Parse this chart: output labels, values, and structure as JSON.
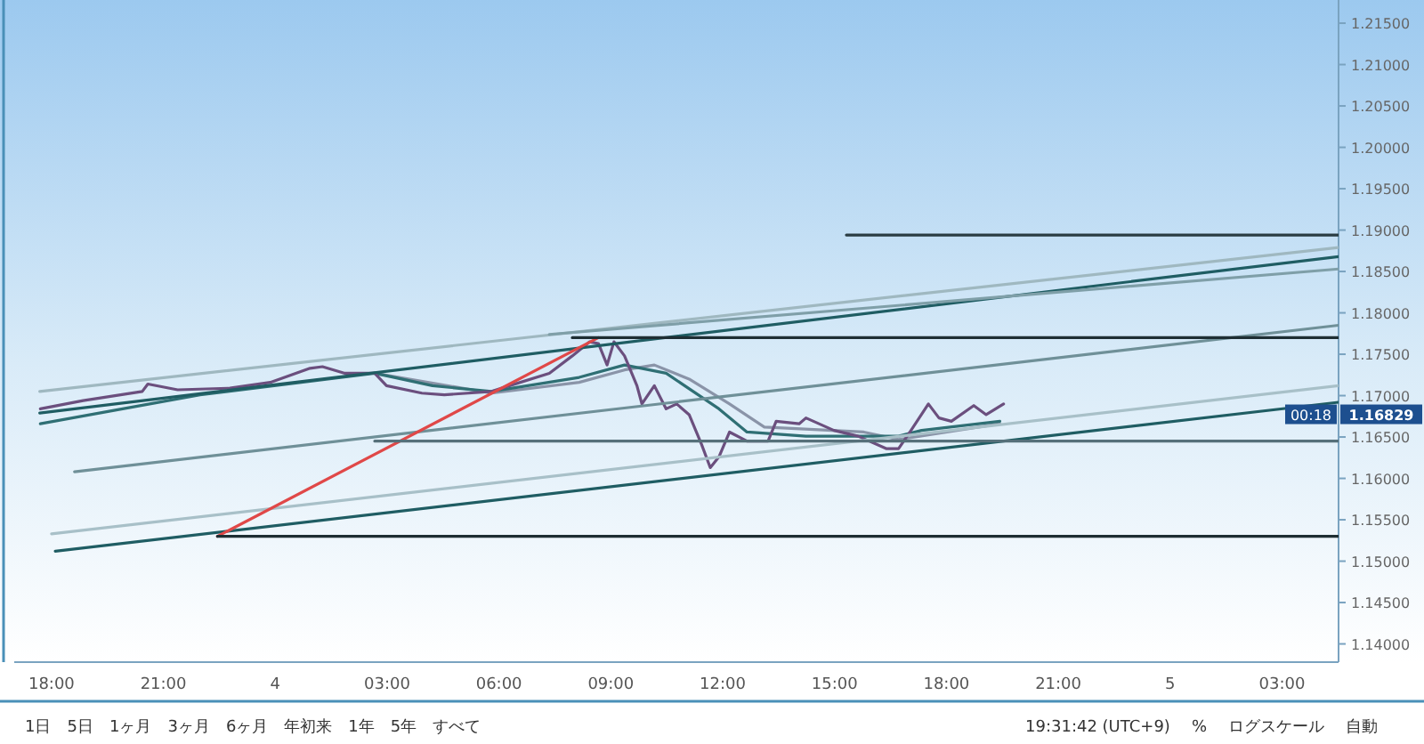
{
  "chart_data": {
    "type": "line",
    "grid": false,
    "marker": "none",
    "line_style": "solid",
    "xlim": [
      "--11-03T17:00",
      "--11-05T04:31"
    ],
    "ylim": [
      1.1378,
      1.2178
    ],
    "xticks": [
      {
        "value": "--11-03T18:00",
        "label": "18:00"
      },
      {
        "value": "--11-03T21:00",
        "label": "21:00"
      },
      {
        "value": "--11-04T00:00",
        "label": "4"
      },
      {
        "value": "--11-04T03:00",
        "label": "03:00"
      },
      {
        "value": "--11-04T06:00",
        "label": "06:00"
      },
      {
        "value": "--11-04T09:00",
        "label": "09:00"
      },
      {
        "value": "--11-04T12:00",
        "label": "12:00"
      },
      {
        "value": "--11-04T15:00",
        "label": "15:00"
      },
      {
        "value": "--11-04T18:00",
        "label": "18:00"
      },
      {
        "value": "--11-04T21:00",
        "label": "21:00"
      },
      {
        "value": "--11-05T00:00",
        "label": "5"
      },
      {
        "value": "--11-05T03:00",
        "label": "03:00"
      }
    ],
    "yticks": [
      {
        "value": 1.14,
        "label": "1.14000"
      },
      {
        "value": 1.145,
        "label": "1.14500"
      },
      {
        "value": 1.15,
        "label": "1.15000"
      },
      {
        "value": 1.155,
        "label": "1.15500"
      },
      {
        "value": 1.16,
        "label": "1.16000"
      },
      {
        "value": 1.165,
        "label": "1.16500"
      },
      {
        "value": 1.17,
        "label": "1.17000"
      },
      {
        "value": 1.175,
        "label": "1.17500"
      },
      {
        "value": 1.18,
        "label": "1.18000"
      },
      {
        "value": 1.185,
        "label": "1.18500"
      },
      {
        "value": 1.19,
        "label": "1.19000"
      },
      {
        "value": 1.195,
        "label": "1.19500"
      },
      {
        "value": 1.2,
        "label": "1.20000"
      },
      {
        "value": 1.205,
        "label": "1.20500"
      },
      {
        "value": 1.21,
        "label": "1.21000"
      },
      {
        "value": 1.215,
        "label": "1.21500"
      }
    ],
    "series": [
      {
        "color": "#8a94a8",
        "x": [
          "--11-04T02:40",
          "--11-04T05:48",
          "--11-04T08:09",
          "--11-04T09:22",
          "--11-04T10:10",
          "--11-04T11:06",
          "--11-04T12:11",
          "--11-04T13:07",
          "--11-04T15:47",
          "--11-04T16:43",
          "--11-04T19:26"
        ],
        "values": [
          1.1727,
          1.1703,
          1.1716,
          1.1731,
          1.1737,
          1.172,
          1.169,
          1.1662,
          1.1656,
          1.1647,
          1.1666
        ]
      },
      {
        "color": "#2f6f74",
        "x": [
          "--11-03T17:42",
          "--11-03T21:59",
          "--11-04T02:40",
          "--11-04T04:13",
          "--11-04T05:48",
          "--11-04T08:09",
          "--11-04T09:22",
          "--11-04T10:29",
          "--11-04T11:54",
          "--11-04T12:39",
          "--11-04T14:14",
          "--11-04T16:43",
          "--11-04T17:20",
          "--11-04T19:26"
        ],
        "values": [
          1.1666,
          1.1701,
          1.1727,
          1.1712,
          1.1705,
          1.1722,
          1.1737,
          1.1727,
          1.1684,
          1.1656,
          1.1651,
          1.1651,
          1.1658,
          1.1669
        ]
      },
      {
        "color": "#6b4f7e",
        "x": [
          "--11-03T17:42",
          "--11-03T18:51",
          "--11-03T20:26",
          "--11-03T20:35",
          "--11-03T21:23",
          "--11-03T22:47",
          "--11-03T23:52",
          "--11-04T00:56",
          "--11-04T01:16",
          "--11-04T01:52",
          "--11-04T02:40",
          "--11-04T02:59",
          "--11-04T03:56",
          "--11-04T04:32",
          "--11-04T05:48",
          "--11-04T06:17",
          "--11-04T07:21",
          "--11-04T07:58",
          "--11-04T08:26",
          "--11-04T08:40",
          "--11-04T08:54",
          "--11-04T09:05",
          "--11-04T09:22",
          "--11-04T09:42",
          "--11-04T09:50",
          "--11-04T10:10",
          "--11-04T10:29",
          "--11-04T10:46",
          "--11-04T11:06",
          "--11-04T11:26",
          "--11-04T11:40",
          "--11-04T11:54",
          "--11-04T12:11",
          "--11-04T12:39",
          "--11-04T13:13",
          "--11-04T13:26",
          "--11-04T14:03",
          "--11-04T14:14",
          "--11-04T14:59",
          "--11-04T15:38",
          "--11-04T16:23",
          "--11-04T16:43",
          "--11-04T17:03",
          "--11-04T17:31",
          "--11-04T17:48",
          "--11-04T18:08",
          "--11-04T18:44",
          "--11-04T19:04",
          "--11-04T19:32"
        ],
        "values": [
          1.1684,
          1.1694,
          1.1705,
          1.1714,
          1.1707,
          1.1709,
          1.1716,
          1.1733,
          1.1735,
          1.1727,
          1.1727,
          1.1712,
          1.1703,
          1.1701,
          1.1705,
          1.1712,
          1.1727,
          1.1748,
          1.1765,
          1.1763,
          1.1737,
          1.1765,
          1.1748,
          1.1712,
          1.169,
          1.1712,
          1.1684,
          1.169,
          1.1677,
          1.1641,
          1.1613,
          1.1626,
          1.1656,
          1.1645,
          1.1645,
          1.1669,
          1.1666,
          1.1673,
          1.1658,
          1.1651,
          1.1636,
          1.1636,
          1.1658,
          1.169,
          1.1673,
          1.1669,
          1.1688,
          1.1677,
          1.169
        ]
      },
      {
        "color": "#1f5d63",
        "x": [
          "--11-03T17:41",
          "--11-05T04:31"
        ],
        "values": [
          1.1679,
          1.1868
        ]
      },
      {
        "color": "#9fb8c0",
        "x": [
          "--11-03T17:41",
          "--11-05T04:31"
        ],
        "values": [
          1.1705,
          1.1879
        ]
      },
      {
        "color": "#7f9fa8",
        "x": [
          "--11-04T07:21",
          "--11-05T04:31"
        ],
        "values": [
          1.1774,
          1.1853
        ]
      },
      {
        "color": "#6f9098",
        "x": [
          "--11-03T18:37",
          "--11-05T04:31"
        ],
        "values": [
          1.1608,
          1.1785
        ]
      },
      {
        "color": "#a8c0c8",
        "x": [
          "--11-03T18:00",
          "--11-05T04:31"
        ],
        "values": [
          1.1533,
          1.1712
        ]
      },
      {
        "color": "#1f5d63",
        "x": [
          "--11-03T18:06",
          "--11-05T04:31"
        ],
        "values": [
          1.1512,
          1.1692
        ]
      },
      {
        "color": "#e04848",
        "x": [
          "--11-03T22:27",
          "--11-04T08:40"
        ],
        "values": [
          1.153,
          1.177
        ]
      },
      {
        "color": "#2a3c42",
        "x": [
          "--11-04T15:19",
          "--11-05T04:31"
        ],
        "values": [
          1.1894,
          1.1894
        ]
      },
      {
        "color": "#1e2e33",
        "x": [
          "--11-04T07:58",
          "--11-05T04:31"
        ],
        "values": [
          1.177,
          1.177
        ]
      },
      {
        "color": "#56707a",
        "x": [
          "--11-04T02:40",
          "--11-05T04:31"
        ],
        "values": [
          1.1645,
          1.1645
        ]
      },
      {
        "color": "#1e2e33",
        "x": [
          "--11-03T22:27",
          "--11-05T04:31"
        ],
        "values": [
          1.153,
          1.153
        ]
      }
    ],
    "annotations": [
      "1.16829",
      "00:18",
      "1日",
      "5日",
      "1ヶ月",
      "3ヶ月",
      "6ヶ月",
      "年初来",
      "1年",
      "5年",
      "すべて",
      "19:31:42 (UTC+9)",
      "%",
      "ログスケール",
      "自動"
    ]
  }
}
